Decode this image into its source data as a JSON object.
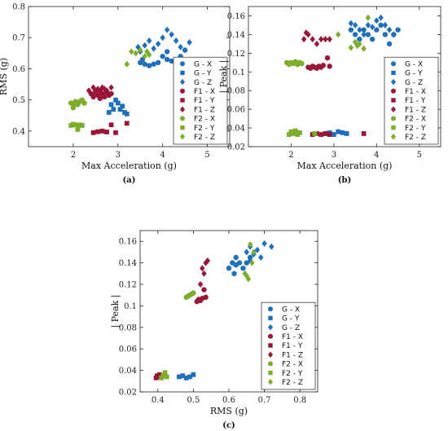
{
  "colors": {
    "G": "#1f6fbf",
    "F1": "#9b1537",
    "F2": "#7dae2a"
  },
  "legend_labels": [
    "G - X",
    "G - Y",
    "G - Z",
    "F1 - X",
    "F1 - Y",
    "F1 - Z",
    "F2 - X",
    "F2 - Y",
    "F2 - Z"
  ],
  "chart_data": [
    {
      "id": "a",
      "type": "scatter",
      "caption": "(a)",
      "xlabel": "Max Acceleration (g)",
      "ylabel": "RMS (g)",
      "xlim": [
        1,
        5.5
      ],
      "ylim": [
        0.35,
        0.8
      ],
      "xticks": [
        2,
        3,
        4,
        5
      ],
      "yticks": [
        0.4,
        0.5,
        0.6,
        0.7,
        0.8
      ],
      "legend_position": "bottom-right",
      "series": [
        {
          "name": "G - X",
          "marker": "circle",
          "color": "G",
          "x": [
            3.5,
            3.6,
            3.7,
            3.8,
            3.9,
            4.0,
            4.1,
            4.2,
            4.3,
            4.4,
            4.5,
            4.1,
            3.55
          ],
          "y": [
            0.62,
            0.615,
            0.61,
            0.615,
            0.62,
            0.64,
            0.63,
            0.625,
            0.63,
            0.64,
            0.66,
            0.655,
            0.63
          ]
        },
        {
          "name": "G - Y",
          "marker": "square",
          "color": "G",
          "x": [
            2.8,
            2.85,
            2.95,
            3.0,
            3.05,
            3.1,
            3.15,
            3.2,
            2.9
          ],
          "y": [
            0.46,
            0.485,
            0.5,
            0.49,
            0.47,
            0.48,
            0.46,
            0.455,
            0.47
          ]
        },
        {
          "name": "G - Z",
          "marker": "diamond",
          "color": "G",
          "x": [
            3.45,
            3.6,
            3.7,
            3.8,
            3.9,
            4.0,
            4.1,
            4.2,
            4.3,
            4.4,
            4.6,
            3.5
          ],
          "y": [
            0.67,
            0.675,
            0.69,
            0.665,
            0.68,
            0.7,
            0.725,
            0.71,
            0.69,
            0.67,
            0.685,
            0.655
          ]
        },
        {
          "name": "F1 - X",
          "marker": "circle",
          "color": "F1",
          "x": [
            2.4,
            2.45,
            2.5,
            2.55,
            2.6,
            2.65,
            2.7,
            2.75,
            2.8,
            2.85,
            2.6,
            2.5
          ],
          "y": [
            0.52,
            0.51,
            0.525,
            0.515,
            0.53,
            0.52,
            0.51,
            0.525,
            0.515,
            0.52,
            0.505,
            0.53
          ]
        },
        {
          "name": "F1 - Y",
          "marker": "square",
          "color": "F1",
          "x": [
            2.45,
            2.55,
            2.65,
            2.75,
            2.85,
            2.95,
            3.2
          ],
          "y": [
            0.395,
            0.398,
            0.4,
            0.397,
            0.42,
            0.395,
            0.425
          ]
        },
        {
          "name": "F1 - Z",
          "marker": "diamond",
          "color": "F1",
          "x": [
            2.35,
            2.45,
            2.55,
            2.65,
            2.75,
            2.85,
            2.5,
            2.7
          ],
          "y": [
            0.53,
            0.54,
            0.535,
            0.54,
            0.53,
            0.54,
            0.525,
            0.535
          ]
        },
        {
          "name": "F2 - X",
          "marker": "circle",
          "color": "F2",
          "x": [
            1.95,
            2.0,
            2.05,
            2.1,
            2.15,
            2.2,
            2.25,
            2.0,
            2.1
          ],
          "y": [
            0.49,
            0.485,
            0.495,
            0.49,
            0.495,
            0.5,
            0.49,
            0.475,
            0.485
          ]
        },
        {
          "name": "F2 - Y",
          "marker": "square",
          "color": "F2",
          "x": [
            1.95,
            2.0,
            2.05,
            2.1,
            2.15,
            2.2,
            2.1
          ],
          "y": [
            0.418,
            0.422,
            0.42,
            0.415,
            0.42,
            0.418,
            0.405
          ]
        },
        {
          "name": "F2 - Z",
          "marker": "diamond",
          "color": "F2",
          "x": [
            3.2,
            3.4,
            3.5,
            3.6,
            3.65,
            3.7,
            3.3
          ],
          "y": [
            0.615,
            0.65,
            0.66,
            0.64,
            0.655,
            0.645,
            0.655
          ]
        }
      ]
    },
    {
      "id": "b",
      "type": "scatter",
      "caption": "(b)",
      "xlabel": "Max Acceleration (g)",
      "ylabel": "| Peak |",
      "xlim": [
        1,
        5.5
      ],
      "ylim": [
        0.02,
        0.17
      ],
      "xticks": [
        2,
        3,
        4,
        5
      ],
      "yticks": [
        0.02,
        0.04,
        0.06,
        0.08,
        0.1,
        0.12,
        0.14,
        0.16
      ],
      "legend_position": "bottom-right",
      "series": [
        {
          "name": "G - X",
          "marker": "circle",
          "color": "G",
          "x": [
            3.4,
            3.5,
            3.6,
            3.7,
            3.8,
            3.9,
            4.0,
            4.1,
            4.2,
            4.3,
            4.4,
            4.5
          ],
          "y": [
            0.145,
            0.14,
            0.135,
            0.145,
            0.14,
            0.135,
            0.145,
            0.15,
            0.14,
            0.13,
            0.14,
            0.145
          ]
        },
        {
          "name": "G - Y",
          "marker": "square",
          "color": "G",
          "x": [
            2.8,
            2.9,
            3.0,
            3.1,
            3.2,
            3.3,
            2.95
          ],
          "y": [
            0.034,
            0.035,
            0.033,
            0.036,
            0.035,
            0.034,
            0.033
          ]
        },
        {
          "name": "G - Z",
          "marker": "diamond",
          "color": "G",
          "x": [
            3.4,
            3.5,
            3.6,
            3.7,
            3.8,
            3.9,
            4.0,
            4.1,
            4.2,
            4.3,
            4.4
          ],
          "y": [
            0.152,
            0.15,
            0.145,
            0.14,
            0.15,
            0.148,
            0.155,
            0.158,
            0.15,
            0.145,
            0.14
          ]
        },
        {
          "name": "F1 - X",
          "marker": "circle",
          "color": "F1",
          "x": [
            2.4,
            2.45,
            2.5,
            2.55,
            2.6,
            2.65,
            2.7,
            2.75,
            2.85,
            2.9
          ],
          "y": [
            0.105,
            0.104,
            0.106,
            0.105,
            0.104,
            0.106,
            0.105,
            0.107,
            0.115,
            0.106
          ]
        },
        {
          "name": "F1 - Y",
          "marker": "square",
          "color": "F1",
          "x": [
            2.5,
            2.6,
            2.7,
            2.8,
            2.9,
            3.7
          ],
          "y": [
            0.033,
            0.034,
            0.033,
            0.034,
            0.033,
            0.034
          ]
        },
        {
          "name": "F1 - Z",
          "marker": "diamond",
          "color": "F1",
          "x": [
            2.3,
            2.4,
            2.5,
            2.6,
            2.7,
            2.8,
            2.9,
            2.35
          ],
          "y": [
            0.135,
            0.14,
            0.135,
            0.13,
            0.135,
            0.135,
            0.135,
            0.142
          ]
        },
        {
          "name": "F2 - X",
          "marker": "circle",
          "color": "F2",
          "x": [
            1.9,
            1.95,
            2.0,
            2.05,
            2.1,
            2.15,
            2.2,
            2.25
          ],
          "y": [
            0.11,
            0.108,
            0.11,
            0.109,
            0.111,
            0.108,
            0.11,
            0.109
          ]
        },
        {
          "name": "F2 - Y",
          "marker": "square",
          "color": "F2",
          "x": [
            1.95,
            2.0,
            2.05,
            2.1,
            2.15,
            2.2,
            2.55
          ],
          "y": [
            0.033,
            0.036,
            0.034,
            0.037,
            0.033,
            0.035,
            0.034
          ]
        },
        {
          "name": "F2 - Z",
          "marker": "diamond",
          "color": "F2",
          "x": [
            3.1,
            3.4,
            3.5,
            3.6,
            3.7,
            3.8,
            3.55
          ],
          "y": [
            0.14,
            0.126,
            0.132,
            0.13,
            0.125,
            0.158,
            0.128
          ]
        }
      ]
    },
    {
      "id": "c",
      "type": "scatter",
      "caption": "(c)",
      "xlabel": "RMS (g)",
      "ylabel": "| Peak |",
      "xlim": [
        0.35,
        0.85
      ],
      "ylim": [
        0.02,
        0.17
      ],
      "xticks": [
        0.4,
        0.5,
        0.6,
        0.7,
        0.8
      ],
      "yticks": [
        0.02,
        0.04,
        0.06,
        0.08,
        0.1,
        0.12,
        0.14,
        0.16
      ],
      "legend_position": "bottom-right",
      "series": [
        {
          "name": "G - X",
          "marker": "circle",
          "color": "G",
          "x": [
            0.6,
            0.61,
            0.615,
            0.62,
            0.63,
            0.64,
            0.65,
            0.66,
            0.62
          ],
          "y": [
            0.135,
            0.14,
            0.13,
            0.145,
            0.14,
            0.135,
            0.14,
            0.145,
            0.138
          ]
        },
        {
          "name": "G - Y",
          "marker": "square",
          "color": "G",
          "x": [
            0.46,
            0.47,
            0.48,
            0.49,
            0.5
          ],
          "y": [
            0.034,
            0.035,
            0.033,
            0.034,
            0.036
          ]
        },
        {
          "name": "G - Z",
          "marker": "diamond",
          "color": "G",
          "x": [
            0.65,
            0.66,
            0.67,
            0.68,
            0.69,
            0.7,
            0.72,
            0.66
          ],
          "y": [
            0.15,
            0.155,
            0.148,
            0.152,
            0.145,
            0.158,
            0.155,
            0.142
          ]
        },
        {
          "name": "F1 - X",
          "marker": "circle",
          "color": "F1",
          "x": [
            0.51,
            0.515,
            0.52,
            0.525,
            0.53,
            0.535
          ],
          "y": [
            0.104,
            0.106,
            0.105,
            0.107,
            0.115,
            0.108
          ]
        },
        {
          "name": "F1 - Y",
          "marker": "square",
          "color": "F1",
          "x": [
            0.395,
            0.398,
            0.4,
            0.405
          ],
          "y": [
            0.033,
            0.035,
            0.034,
            0.036
          ]
        },
        {
          "name": "F1 - Z",
          "marker": "diamond",
          "color": "F1",
          "x": [
            0.52,
            0.525,
            0.53,
            0.535,
            0.54
          ],
          "y": [
            0.12,
            0.135,
            0.13,
            0.14,
            0.142
          ]
        },
        {
          "name": "F2 - X",
          "marker": "circle",
          "color": "F2",
          "x": [
            0.48,
            0.485,
            0.49,
            0.495,
            0.5
          ],
          "y": [
            0.108,
            0.109,
            0.11,
            0.111,
            0.112
          ]
        },
        {
          "name": "F2 - Y",
          "marker": "square",
          "color": "F2",
          "x": [
            0.41,
            0.415,
            0.42,
            0.425
          ],
          "y": [
            0.033,
            0.035,
            0.038,
            0.034
          ]
        },
        {
          "name": "F2 - Z",
          "marker": "diamond",
          "color": "F2",
          "x": [
            0.645,
            0.65,
            0.655,
            0.66,
            0.665,
            0.67
          ],
          "y": [
            0.13,
            0.128,
            0.125,
            0.157,
            0.14,
            0.15
          ]
        }
      ]
    }
  ]
}
